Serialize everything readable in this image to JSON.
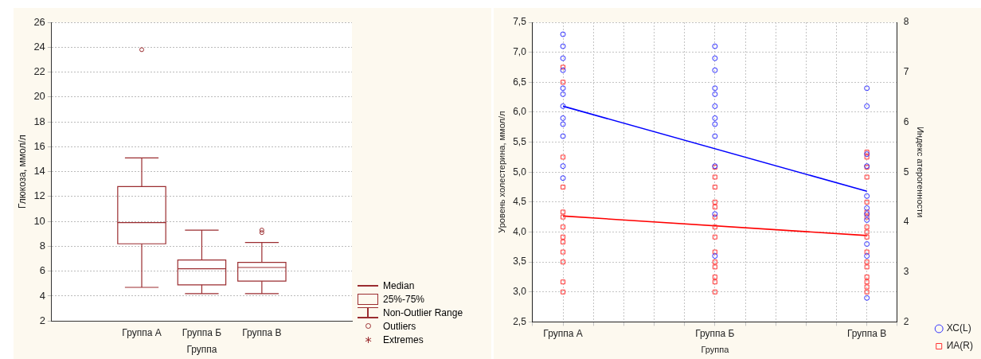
{
  "chart_data": [
    {
      "type": "box",
      "xlabel": "Группа",
      "ylabel": "Глюкоза, ммол/л",
      "categories": [
        "Группа А",
        "Группа Б",
        "Группа В"
      ],
      "ylim": [
        2,
        26
      ],
      "yticks": [
        2,
        4,
        6,
        8,
        10,
        12,
        14,
        16,
        18,
        20,
        22,
        24,
        26
      ],
      "grid": "y",
      "series": [
        {
          "color": "#9b2d30",
          "boxes": [
            {
              "low": 4.7,
              "q1": 8.2,
              "median": 9.9,
              "q3": 12.8,
              "high": 15.1,
              "outliers": [
                23.8
              ]
            },
            {
              "low": 4.2,
              "q1": 4.9,
              "median": 6.2,
              "q3": 6.9,
              "high": 9.3
            },
            {
              "low": 4.2,
              "q1": 5.2,
              "median": 6.3,
              "q3": 6.7,
              "high": 8.3,
              "outliers": [
                9.3,
                9.1
              ]
            }
          ]
        }
      ],
      "annotations": [
        "Median",
        "25%-75%",
        "Non-Outlier Range",
        "Outliers",
        "Extremes"
      ]
    },
    {
      "type": "scatter",
      "xlabel": "Группа",
      "ylabel": "Уровень холестерина, ммол/л",
      "y2label": "Индекс атерогенности",
      "categories": [
        "Группа А",
        "Группа Б",
        "Группа В"
      ],
      "ylim": [
        2.5,
        7.5
      ],
      "yticks": [
        {
          "value": 2.5,
          "label": "2,5"
        },
        {
          "value": 3,
          "label": "3,0"
        },
        {
          "value": 3.5,
          "label": "3,5"
        },
        {
          "value": 4,
          "label": "4,0"
        },
        {
          "value": 4.5,
          "label": "4,5"
        },
        {
          "value": 5,
          "label": "5,0"
        },
        {
          "value": 5.5,
          "label": "5,5"
        },
        {
          "value": 6,
          "label": "6,0"
        },
        {
          "value": 6.5,
          "label": "6,5"
        },
        {
          "value": 7,
          "label": "7,0"
        },
        {
          "value": 7.5,
          "label": "7,5"
        }
      ],
      "y2lim": [
        2,
        8
      ],
      "y2ticks": [
        2,
        3,
        4,
        5,
        6,
        7,
        8
      ],
      "grid": true,
      "legend": "bottom right",
      "series": [
        {
          "name": "ХС(L)",
          "type": "scatter",
          "color": "#3333ff",
          "marker": "circle",
          "x": [
            "Группа А",
            "Группа А",
            "Группа А",
            "Группа А",
            "Группа А",
            "Группа А",
            "Группа А",
            "Группа А",
            "Группа А",
            "Группа А",
            "Группа А",
            "Группа А",
            "Группа Б",
            "Группа Б",
            "Группа Б",
            "Группа Б",
            "Группа Б",
            "Группа Б",
            "Группа Б",
            "Группа Б",
            "Группа Б",
            "Группа Б",
            "Группа Б",
            "Группа Б",
            "Группа В",
            "Группа В",
            "Группа В",
            "Группа В",
            "Группа В",
            "Группа В",
            "Группа В",
            "Группа В",
            "Группа В",
            "Группа В",
            "Группа В"
          ],
          "values": [
            7.3,
            7.1,
            6.9,
            6.7,
            6.4,
            6.3,
            6.1,
            5.9,
            5.8,
            5.6,
            5.1,
            4.9,
            7.1,
            6.9,
            6.7,
            6.4,
            6.3,
            6.1,
            5.9,
            5.8,
            5.6,
            5.1,
            4.3,
            3.6,
            6.4,
            6.1,
            5.3,
            5.1,
            4.6,
            4.4,
            4.3,
            4.2,
            3.8,
            3.6,
            2.9
          ]
        },
        {
          "name": "ИА(R)",
          "type": "scatter",
          "axis": "y2",
          "color": "#ff3333",
          "marker": "square",
          "x": [
            "Группа А",
            "Группа А",
            "Группа А",
            "Группа А",
            "Группа А",
            "Группа А",
            "Группа А",
            "Группа А",
            "Группа А",
            "Группа А",
            "Группа А",
            "Группа А",
            "Группа А",
            "Группа Б",
            "Группа Б",
            "Группа Б",
            "Группа Б",
            "Группа Б",
            "Группа Б",
            "Группа Б",
            "Группа Б",
            "Группа Б",
            "Группа Б",
            "Группа Б",
            "Группа Б",
            "Группа Б",
            "Группа Б",
            "Группа В",
            "Группа В",
            "Группа В",
            "Группа В",
            "Группа В",
            "Группа В",
            "Группа В",
            "Группа В",
            "Группа В",
            "Группа В",
            "Группа В",
            "Группа В",
            "Группа В",
            "Группа В",
            "Группа В",
            "Группа В",
            "Группа В"
          ],
          "values": [
            7.1,
            6.8,
            5.3,
            4.7,
            4.2,
            4.1,
            3.9,
            3.7,
            3.6,
            3.4,
            3.2,
            2.8,
            2.6,
            5.1,
            4.9,
            4.7,
            4.4,
            4.3,
            4.1,
            3.9,
            3.7,
            3.4,
            3.2,
            3.1,
            2.9,
            2.8,
            2.6,
            5.4,
            5.3,
            5.1,
            4.9,
            4.4,
            4.2,
            4.1,
            3.9,
            3.8,
            3.7,
            3.4,
            3.2,
            3.1,
            2.9,
            2.8,
            2.7,
            2.6
          ]
        },
        {
          "type": "line",
          "color": "#0000ff",
          "marker": "none",
          "x": [
            "Группа А",
            "Группа В"
          ],
          "values": [
            6.1,
            4.68
          ]
        },
        {
          "type": "line",
          "axis": "y2",
          "color": "#ff0000",
          "marker": "none",
          "x": [
            "Группа А",
            "Группа В"
          ],
          "values": [
            4.12,
            3.73
          ]
        }
      ]
    }
  ]
}
